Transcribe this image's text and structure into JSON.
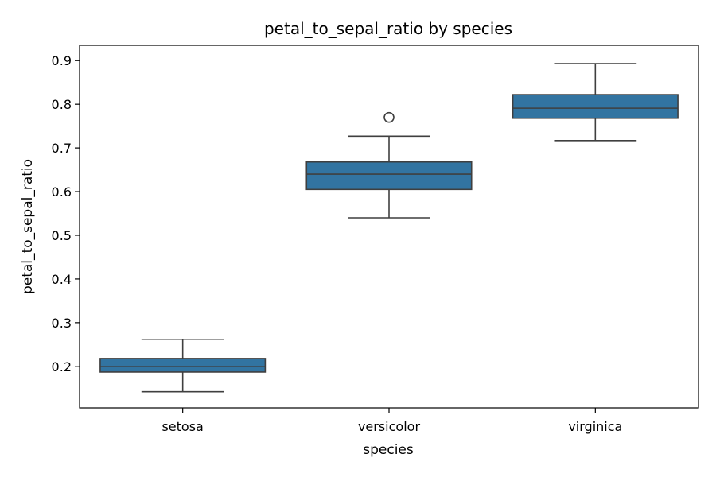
{
  "chart_data": {
    "type": "box",
    "title": "petal_to_sepal_ratio by species",
    "xlabel": "species",
    "ylabel": "petal_to_sepal_ratio",
    "ylim": [
      0.105,
      0.935
    ],
    "yticks": [
      0.2,
      0.3,
      0.4,
      0.5,
      0.6,
      0.7,
      0.8,
      0.9
    ],
    "ytick_labels": [
      "0.2",
      "0.3",
      "0.4",
      "0.5",
      "0.6",
      "0.7",
      "0.8",
      "0.9"
    ],
    "categories": [
      "setosa",
      "versicolor",
      "virginica"
    ],
    "box_color": "#3274a1",
    "grid": false,
    "legend": "none",
    "boxes": [
      {
        "category": "setosa",
        "whisker_low": 0.142,
        "q1": 0.187,
        "median": 0.2,
        "q3": 0.218,
        "whisker_high": 0.262,
        "outliers": []
      },
      {
        "category": "versicolor",
        "whisker_low": 0.54,
        "q1": 0.605,
        "median": 0.64,
        "q3": 0.668,
        "whisker_high": 0.727,
        "outliers": [
          0.77
        ]
      },
      {
        "category": "virginica",
        "whisker_low": 0.717,
        "q1": 0.768,
        "median": 0.791,
        "q3": 0.822,
        "whisker_high": 0.893,
        "outliers": []
      }
    ]
  }
}
